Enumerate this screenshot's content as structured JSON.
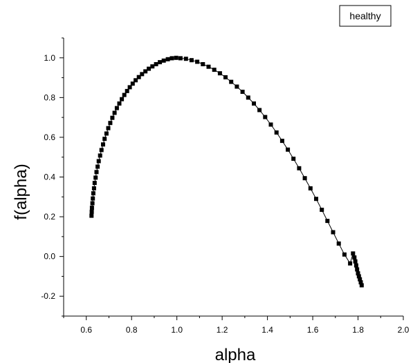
{
  "chart_data": {
    "type": "line",
    "title": "",
    "xlabel": "alpha",
    "ylabel": "f(alpha)",
    "xlim": [
      0.5,
      2.0
    ],
    "ylim": [
      -0.3,
      1.1
    ],
    "xticks": [
      0.6,
      0.8,
      1.0,
      1.2,
      1.4,
      1.6,
      1.8,
      2.0
    ],
    "xtick_labels": [
      "0.6",
      "0.8",
      "1.0",
      "1.2",
      "1.4",
      "1.6",
      "1.8",
      "2.0"
    ],
    "yticks": [
      -0.2,
      0.0,
      0.2,
      0.4,
      0.6,
      0.8,
      1.0
    ],
    "ytick_labels": [
      "-0.2",
      "0.0",
      "0.2",
      "0.4",
      "0.6",
      "0.8",
      "1.0"
    ],
    "grid": false,
    "legend": {
      "placement": "top-right",
      "entries": [
        "healthy"
      ]
    },
    "marker": "square",
    "color": "#000000",
    "series": [
      {
        "name": "healthy",
        "x": [
          0.623,
          0.624,
          0.625,
          0.627,
          0.629,
          0.631,
          0.634,
          0.637,
          0.641,
          0.645,
          0.65,
          0.655,
          0.661,
          0.667,
          0.674,
          0.681,
          0.689,
          0.697,
          0.706,
          0.715,
          0.725,
          0.735,
          0.746,
          0.757,
          0.768,
          0.78,
          0.792,
          0.805,
          0.818,
          0.832,
          0.846,
          0.861,
          0.876,
          0.892,
          0.908,
          0.925,
          0.942,
          0.96,
          0.978,
          0.997,
          1.016,
          1.04,
          1.065,
          1.09,
          1.115,
          1.14,
          1.165,
          1.19,
          1.215,
          1.24,
          1.265,
          1.29,
          1.315,
          1.34,
          1.365,
          1.39,
          1.415,
          1.44,
          1.465,
          1.49,
          1.515,
          1.54,
          1.565,
          1.59,
          1.615,
          1.64,
          1.665,
          1.69,
          1.715,
          1.74,
          1.765,
          1.778,
          1.784,
          1.788,
          1.792,
          1.796,
          1.8,
          1.804,
          1.808,
          1.812,
          1.816
        ],
        "y": [
          0.205,
          0.225,
          0.245,
          0.268,
          0.292,
          0.318,
          0.343,
          0.37,
          0.397,
          0.425,
          0.452,
          0.48,
          0.508,
          0.536,
          0.564,
          0.592,
          0.619,
          0.646,
          0.672,
          0.698,
          0.723,
          0.747,
          0.77,
          0.792,
          0.813,
          0.833,
          0.852,
          0.87,
          0.887,
          0.903,
          0.918,
          0.932,
          0.945,
          0.957,
          0.968,
          0.978,
          0.986,
          0.993,
          0.998,
          1.0,
          0.998,
          0.995,
          0.988,
          0.98,
          0.968,
          0.955,
          0.94,
          0.922,
          0.902,
          0.879,
          0.855,
          0.829,
          0.8,
          0.77,
          0.737,
          0.702,
          0.664,
          0.624,
          0.582,
          0.538,
          0.492,
          0.444,
          0.394,
          0.343,
          0.29,
          0.235,
          0.179,
          0.122,
          0.065,
          0.01,
          -0.035,
          0.015,
          -0.005,
          -0.025,
          -0.045,
          -0.065,
          -0.085,
          -0.1,
          -0.115,
          -0.13,
          -0.145
        ]
      }
    ]
  }
}
